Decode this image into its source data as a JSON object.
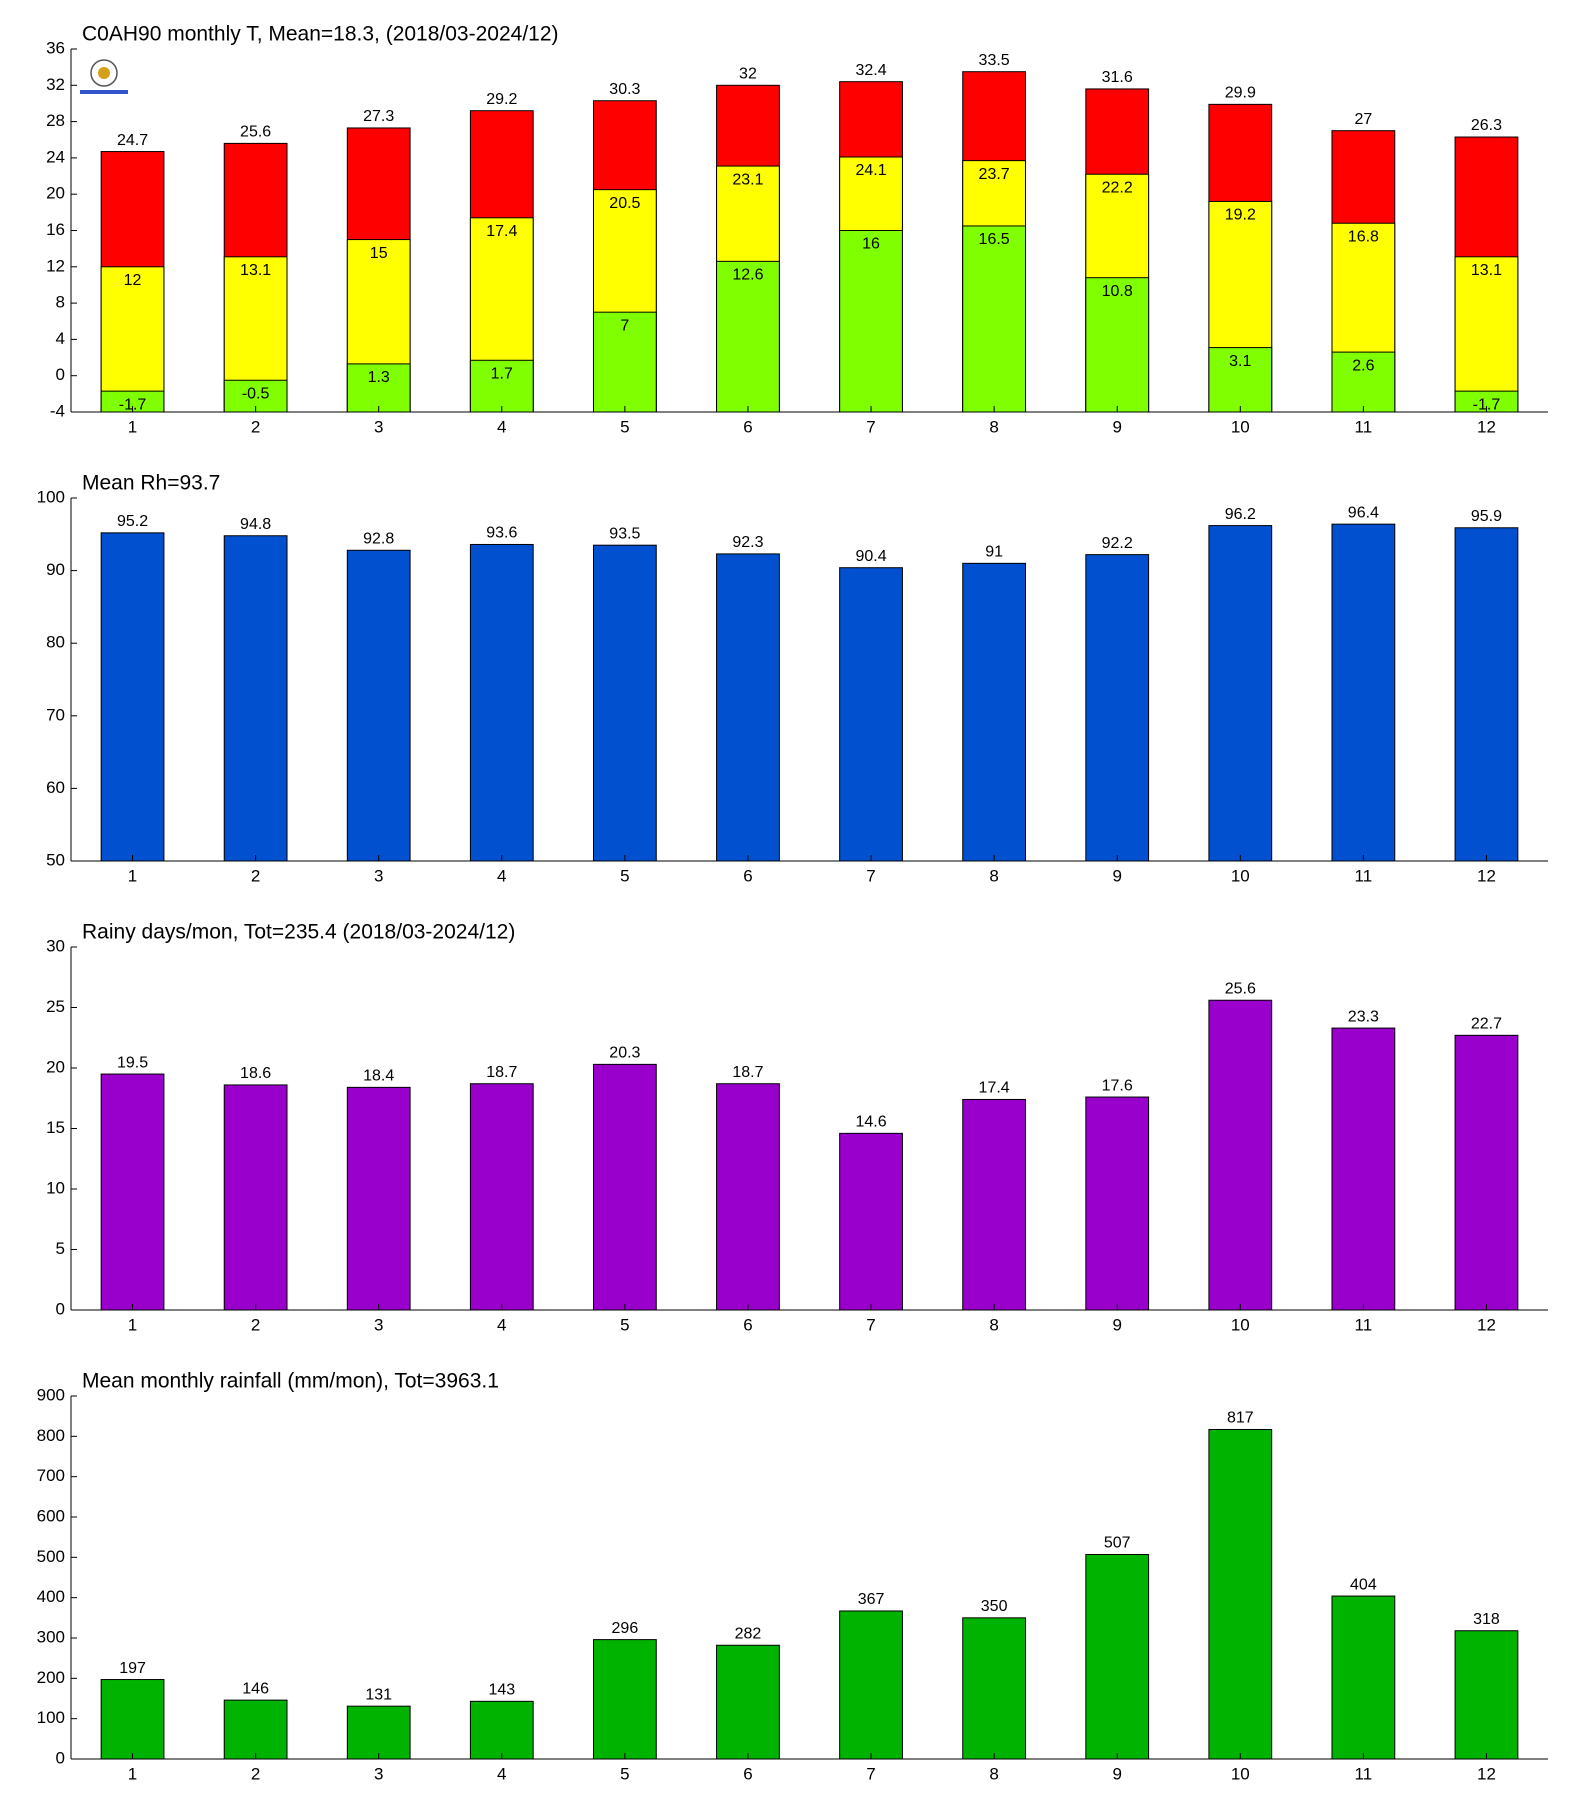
{
  "chart_data": [
    {
      "type": "bar",
      "title": "C0AH90 monthly T, Mean=18.3, (2018/03-2024/12)",
      "categories": [
        "1",
        "2",
        "3",
        "4",
        "5",
        "6",
        "7",
        "8",
        "9",
        "10",
        "11",
        "12"
      ],
      "series": [
        {
          "color": "#ff0000",
          "label_position": "above",
          "values": [
            24.7,
            25.6,
            27.3,
            29.2,
            30.3,
            32,
            32.4,
            33.5,
            31.6,
            29.9,
            27,
            26.3
          ]
        },
        {
          "color": "#ffff00",
          "label_position": "inside",
          "values": [
            12,
            13.1,
            15,
            17.4,
            20.5,
            23.1,
            24.1,
            23.7,
            22.2,
            19.2,
            16.8,
            13.1
          ]
        },
        {
          "color": "#80ff00",
          "label_position": "inside",
          "values": [
            -1.7,
            -0.5,
            1.3,
            1.7,
            7,
            12.6,
            16,
            16.5,
            10.8,
            3.1,
            2.6,
            -1.7
          ]
        }
      ],
      "ylim": [
        -4,
        36
      ],
      "yticks": [
        -4,
        0,
        4,
        8,
        12,
        16,
        20,
        24,
        28,
        32,
        36
      ]
    },
    {
      "type": "bar",
      "title": "Mean Rh=93.7",
      "categories": [
        "1",
        "2",
        "3",
        "4",
        "5",
        "6",
        "7",
        "8",
        "9",
        "10",
        "11",
        "12"
      ],
      "series": [
        {
          "color": "#0050d0",
          "label_position": "above",
          "values": [
            95.2,
            94.8,
            92.8,
            93.6,
            93.5,
            92.3,
            90.4,
            91,
            92.2,
            96.2,
            96.4,
            95.9
          ]
        }
      ],
      "ylim": [
        50,
        100
      ],
      "yticks": [
        50,
        60,
        70,
        80,
        90,
        100
      ]
    },
    {
      "type": "bar",
      "title": "Rainy days/mon, Tot=235.4 (2018/03-2024/12)",
      "categories": [
        "1",
        "2",
        "3",
        "4",
        "5",
        "6",
        "7",
        "8",
        "9",
        "10",
        "11",
        "12"
      ],
      "series": [
        {
          "color": "#9900cc",
          "label_position": "above",
          "values": [
            19.5,
            18.6,
            18.4,
            18.7,
            20.3,
            18.7,
            14.6,
            17.4,
            17.6,
            25.6,
            23.3,
            22.7
          ]
        }
      ],
      "ylim": [
        0,
        30
      ],
      "yticks": [
        0,
        5,
        10,
        15,
        20,
        25,
        30
      ]
    },
    {
      "type": "bar",
      "title": "Mean monthly rainfall (mm/mon), Tot=3963.1",
      "categories": [
        "1",
        "2",
        "3",
        "4",
        "5",
        "6",
        "7",
        "8",
        "9",
        "10",
        "11",
        "12"
      ],
      "series": [
        {
          "color": "#00b300",
          "label_position": "above",
          "values": [
            197,
            146,
            131,
            143,
            296,
            282,
            367,
            350,
            507,
            817,
            404,
            318
          ]
        }
      ],
      "ylim": [
        0,
        900
      ],
      "yticks": [
        0,
        100,
        200,
        300,
        400,
        500,
        600,
        700,
        800,
        900
      ]
    }
  ]
}
